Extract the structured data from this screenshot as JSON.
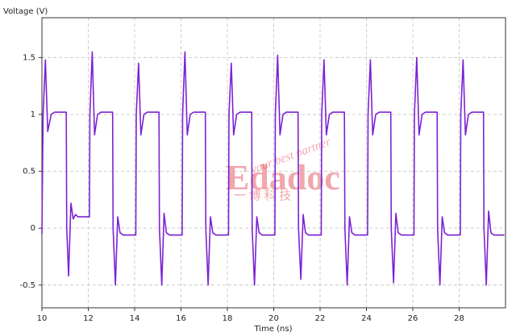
{
  "chart_data": {
    "type": "line",
    "ylabel": "Voltage (V)",
    "xlabel": "Time (ns)",
    "color": "#7b22d4",
    "grid": true,
    "xlim": [
      10,
      30
    ],
    "ylim": [
      -0.7,
      1.85
    ],
    "xticks": [
      10,
      12,
      14,
      16,
      18,
      20,
      22,
      24,
      26,
      28
    ],
    "yticks": [
      -0.5,
      0,
      0.5,
      1,
      1.5
    ],
    "watermark": [
      "Edadoc",
      "your best partner",
      "一 博 科 技"
    ],
    "x": [
      10,
      10.05,
      10.15,
      10.25,
      10.4,
      10.55,
      11.05,
      11.07,
      11.15,
      11.25,
      11.35,
      11.45,
      11.55,
      12.05,
      12.07,
      12.17,
      12.27,
      12.4,
      12.55,
      13.05,
      13.07,
      13.17,
      13.27,
      13.37,
      13.5,
      14.05,
      14.07,
      14.17,
      14.27,
      14.4,
      14.55,
      15.05,
      15.07,
      15.17,
      15.27,
      15.37,
      15.5,
      16.05,
      16.07,
      16.17,
      16.27,
      16.4,
      16.55,
      17.05,
      17.07,
      17.17,
      17.27,
      17.37,
      17.5,
      18.05,
      18.07,
      18.17,
      18.27,
      18.4,
      18.55,
      19.05,
      19.07,
      19.17,
      19.27,
      19.37,
      19.5,
      20.05,
      20.07,
      20.17,
      20.27,
      20.4,
      20.55,
      21.05,
      21.07,
      21.17,
      21.27,
      21.37,
      21.5,
      22.05,
      22.07,
      22.17,
      22.27,
      22.4,
      22.55,
      23.05,
      23.07,
      23.17,
      23.27,
      23.37,
      23.5,
      24.05,
      24.07,
      24.17,
      24.27,
      24.4,
      24.55,
      25.05,
      25.07,
      25.17,
      25.27,
      25.37,
      25.5,
      26.05,
      26.07,
      26.17,
      26.27,
      26.4,
      26.55,
      27.05,
      27.07,
      27.17,
      27.27,
      27.37,
      27.5,
      28.05,
      28.07,
      28.17,
      28.27,
      28.4,
      28.55,
      29.05,
      29.07,
      29.17,
      29.27,
      29.37,
      29.5,
      29.95
    ],
    "values": [
      -0.05,
      1.0,
      1.48,
      0.85,
      1.0,
      1.02,
      1.02,
      0,
      -0.42,
      0.22,
      0.08,
      0.12,
      0.1,
      0.1,
      1.0,
      1.55,
      0.82,
      1.0,
      1.02,
      1.02,
      0,
      -0.5,
      0.1,
      -0.04,
      -0.06,
      -0.06,
      1.0,
      1.45,
      0.82,
      1.0,
      1.02,
      1.02,
      0,
      -0.5,
      0.13,
      -0.04,
      -0.06,
      -0.06,
      1.0,
      1.55,
      0.82,
      1.0,
      1.02,
      1.02,
      0,
      -0.5,
      0.1,
      -0.04,
      -0.06,
      -0.06,
      1.0,
      1.45,
      0.82,
      1.0,
      1.02,
      1.02,
      0,
      -0.5,
      0.1,
      -0.04,
      -0.06,
      -0.06,
      1.0,
      1.52,
      0.82,
      1.0,
      1.02,
      1.02,
      0,
      -0.45,
      0.12,
      -0.04,
      -0.06,
      -0.06,
      1.0,
      1.48,
      0.82,
      1.0,
      1.02,
      1.02,
      0,
      -0.5,
      0.1,
      -0.04,
      -0.06,
      -0.06,
      1.0,
      1.48,
      0.82,
      1.0,
      1.02,
      1.02,
      0,
      -0.48,
      0.13,
      -0.04,
      -0.06,
      -0.06,
      1.0,
      1.5,
      0.82,
      1.0,
      1.02,
      1.02,
      0,
      -0.5,
      0.1,
      -0.04,
      -0.06,
      -0.06,
      1.0,
      1.48,
      0.82,
      1.0,
      1.02,
      1.02,
      0,
      -0.5,
      0.15,
      -0.04,
      -0.06,
      -0.06
    ]
  }
}
